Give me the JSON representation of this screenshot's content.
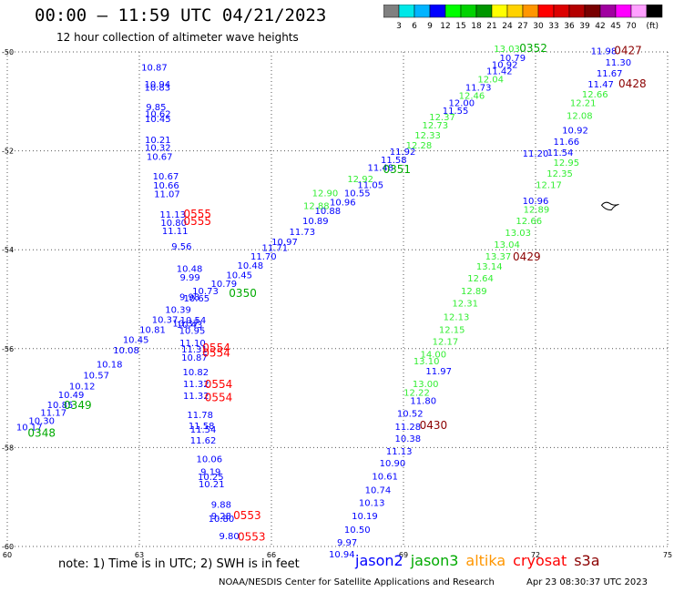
{
  "header": {
    "title": "00:00 – 11:59 UTC 04/21/2023",
    "subtitle": "12 hour collection of altimeter wave heights"
  },
  "legend": {
    "unit": "(ft)",
    "bins": [
      {
        "label": "",
        "color": "#808080"
      },
      {
        "label": "3",
        "color": "#00e8e8"
      },
      {
        "label": "6",
        "color": "#00b4ff"
      },
      {
        "label": "9",
        "color": "#0000ff"
      },
      {
        "label": "12",
        "color": "#00ff00"
      },
      {
        "label": "15",
        "color": "#00d200"
      },
      {
        "label": "18",
        "color": "#009600"
      },
      {
        "label": "21",
        "color": "#ffff00"
      },
      {
        "label": "24",
        "color": "#ffd200"
      },
      {
        "label": "27",
        "color": "#ff9600"
      },
      {
        "label": "30",
        "color": "#ff0000"
      },
      {
        "label": "33",
        "color": "#dc0000"
      },
      {
        "label": "36",
        "color": "#b40000"
      },
      {
        "label": "39",
        "color": "#780000"
      },
      {
        "label": "42",
        "color": "#a000a0"
      },
      {
        "label": "45",
        "color": "#ff00ff"
      },
      {
        "label": "70",
        "color": "#ffa0ff"
      },
      {
        "label": "",
        "color": "#000000"
      }
    ]
  },
  "map": {
    "lon_range": [
      60,
      75
    ],
    "lat_range": [
      -60,
      -50
    ],
    "lon_ticks": [
      "60",
      "63",
      "66",
      "69",
      "72",
      "75"
    ],
    "lat_ticks": [
      "-50",
      "-52",
      "-54",
      "-56",
      "-58",
      "-60"
    ],
    "satellite_colors": {
      "jason2": "#0000ff",
      "jason3": "#00aa00",
      "altika": "#ff9600",
      "cryosat": "#ff0000",
      "s3a": "#8b0000",
      "cryosat_light": "#ff0000",
      "jason3_light": "#33ee33"
    },
    "points": [
      {
        "lon": 72.0,
        "lat": -52.12,
        "v": "11.20",
        "s": "jason2"
      },
      {
        "lon": 63.34,
        "lat": -50.38,
        "v": "10.87",
        "s": "jason2"
      },
      {
        "lon": 63.41,
        "lat": -50.72,
        "v": "10.94",
        "s": "jason2"
      },
      {
        "lon": 63.41,
        "lat": -50.78,
        "v": "10.83",
        "s": "jason2"
      },
      {
        "lon": 63.38,
        "lat": -51.18,
        "v": "9.85",
        "s": "jason2"
      },
      {
        "lon": 63.42,
        "lat": -51.32,
        "v": "10.62",
        "s": "jason2"
      },
      {
        "lon": 63.42,
        "lat": -51.42,
        "v": "10.45",
        "s": "jason2"
      },
      {
        "lon": 63.42,
        "lat": -51.84,
        "v": "10.21",
        "s": "jason2"
      },
      {
        "lon": 63.42,
        "lat": -52.0,
        "v": "10.32",
        "s": "jason2"
      },
      {
        "lon": 63.46,
        "lat": -52.18,
        "v": "10.67",
        "s": "jason2"
      },
      {
        "lon": 63.6,
        "lat": -52.58,
        "v": "10.67",
        "s": "jason2"
      },
      {
        "lon": 63.61,
        "lat": -52.76,
        "v": "10.66",
        "s": "jason2"
      },
      {
        "lon": 63.63,
        "lat": -52.94,
        "v": "11.07",
        "s": "jason2"
      },
      {
        "lon": 63.76,
        "lat": -53.35,
        "v": "11.13",
        "s": "jason2"
      },
      {
        "lon": 63.78,
        "lat": -53.52,
        "v": "10.80",
        "s": "jason2"
      },
      {
        "lon": 63.81,
        "lat": -53.68,
        "v": "11.11",
        "s": "jason2"
      },
      {
        "lon": 63.96,
        "lat": -54.0,
        "v": "9.56",
        "s": "jason2"
      },
      {
        "lon": 64.14,
        "lat": -54.45,
        "v": "10.48",
        "s": "jason2"
      },
      {
        "lon": 64.15,
        "lat": -54.62,
        "v": "9.99",
        "s": "jason2"
      },
      {
        "lon": 64.14,
        "lat": -55.02,
        "v": "9.98",
        "s": "jason2"
      },
      {
        "lon": 64.05,
        "lat": -55.55,
        "v": "10.37",
        "s": "jason2"
      },
      {
        "lon": 64.22,
        "lat": -55.49,
        "v": "10.54",
        "s": "jason2"
      },
      {
        "lon": 64.14,
        "lat": -55.58,
        "v": "10.43",
        "s": "jason2"
      },
      {
        "lon": 64.2,
        "lat": -55.7,
        "v": "10.95",
        "s": "jason2"
      },
      {
        "lon": 64.21,
        "lat": -55.95,
        "v": "11.10",
        "s": "jason2"
      },
      {
        "lon": 64.25,
        "lat": -56.08,
        "v": "11.31",
        "s": "jason2"
      },
      {
        "lon": 64.25,
        "lat": -56.24,
        "v": "10.87",
        "s": "jason2"
      },
      {
        "lon": 64.28,
        "lat": -56.54,
        "v": "10.82",
        "s": "jason2"
      },
      {
        "lon": 64.29,
        "lat": -56.78,
        "v": "11.32",
        "s": "jason2"
      },
      {
        "lon": 64.29,
        "lat": -57.02,
        "v": "11.32",
        "s": "jason2"
      },
      {
        "lon": 64.38,
        "lat": -57.4,
        "v": "11.78",
        "s": "jason2"
      },
      {
        "lon": 64.41,
        "lat": -57.62,
        "v": "11.58",
        "s": "jason2"
      },
      {
        "lon": 64.45,
        "lat": -57.7,
        "v": "11.54",
        "s": "jason2"
      },
      {
        "lon": 64.45,
        "lat": -57.92,
        "v": "11.62",
        "s": "jason2"
      },
      {
        "lon": 64.59,
        "lat": -58.3,
        "v": "10.06",
        "s": "jason2"
      },
      {
        "lon": 64.62,
        "lat": -58.55,
        "v": "9.19",
        "s": "jason2"
      },
      {
        "lon": 64.62,
        "lat": -58.66,
        "v": "10.25",
        "s": "jason2"
      },
      {
        "lon": 64.64,
        "lat": -58.8,
        "v": "10.21",
        "s": "jason2"
      },
      {
        "lon": 64.86,
        "lat": -59.22,
        "v": "9.88",
        "s": "jason2"
      },
      {
        "lon": 64.86,
        "lat": -59.45,
        "v": "9.28",
        "s": "jason2"
      },
      {
        "lon": 64.86,
        "lat": -59.5,
        "v": "10.80",
        "s": "jason2"
      },
      {
        "lon": 65.04,
        "lat": -59.85,
        "v": "9.80",
        "s": "jason2"
      },
      {
        "lon": 60.5,
        "lat": -57.65,
        "v": "10.17",
        "s": "jason2"
      },
      {
        "lon": 60.78,
        "lat": -57.52,
        "v": "10.30",
        "s": "jason2"
      },
      {
        "lon": 61.05,
        "lat": -57.36,
        "v": "11.17",
        "s": "jason2"
      },
      {
        "lon": 61.2,
        "lat": -57.2,
        "v": "10.85",
        "s": "jason2"
      },
      {
        "lon": 61.45,
        "lat": -57.0,
        "v": "10.49",
        "s": "jason2"
      },
      {
        "lon": 61.7,
        "lat": -56.82,
        "v": "10.12",
        "s": "jason2"
      },
      {
        "lon": 62.02,
        "lat": -56.6,
        "v": "10.57",
        "s": "jason2"
      },
      {
        "lon": 62.32,
        "lat": -56.38,
        "v": "10.18",
        "s": "jason2"
      },
      {
        "lon": 62.7,
        "lat": -56.1,
        "v": "10.08",
        "s": "jason2"
      },
      {
        "lon": 62.92,
        "lat": -55.88,
        "v": "10.45",
        "s": "jason2"
      },
      {
        "lon": 63.3,
        "lat": -55.68,
        "v": "10.81",
        "s": "jason2"
      },
      {
        "lon": 63.58,
        "lat": -55.48,
        "v": "10.37",
        "s": "jason2"
      },
      {
        "lon": 63.88,
        "lat": -55.28,
        "v": "10.39",
        "s": "jason2"
      },
      {
        "lon": 64.3,
        "lat": -55.05,
        "v": "10.65",
        "s": "jason2"
      },
      {
        "lon": 64.5,
        "lat": -54.9,
        "v": "10.73",
        "s": "jason2"
      },
      {
        "lon": 64.92,
        "lat": -54.75,
        "v": "10.79",
        "s": "jason2"
      },
      {
        "lon": 65.27,
        "lat": -54.58,
        "v": "10.45",
        "s": "jason2"
      },
      {
        "lon": 65.52,
        "lat": -54.38,
        "v": "10.48",
        "s": "jason2"
      },
      {
        "lon": 65.82,
        "lat": -54.2,
        "v": "11.70",
        "s": "jason2"
      },
      {
        "lon": 66.08,
        "lat": -54.02,
        "v": "11.71",
        "s": "jason2"
      },
      {
        "lon": 66.3,
        "lat": -53.9,
        "v": "10.97",
        "s": "jason2"
      },
      {
        "lon": 66.7,
        "lat": -53.7,
        "v": "11.73",
        "s": "jason2"
      },
      {
        "lon": 67.0,
        "lat": -53.48,
        "v": "10.89",
        "s": "jason2"
      },
      {
        "lon": 67.28,
        "lat": -53.28,
        "v": "10.88",
        "s": "jason2"
      },
      {
        "lon": 67.62,
        "lat": -53.1,
        "v": "10.96",
        "s": "jason2"
      },
      {
        "lon": 67.95,
        "lat": -52.92,
        "v": "10.55",
        "s": "jason2"
      },
      {
        "lon": 68.25,
        "lat": -52.75,
        "v": "11.05",
        "s": "jason2"
      },
      {
        "lon": 68.48,
        "lat": -52.4,
        "v": "11.48",
        "s": "jason2"
      },
      {
        "lon": 68.78,
        "lat": -52.25,
        "v": "11.58",
        "s": "jason2"
      },
      {
        "lon": 68.98,
        "lat": -52.08,
        "v": "11.92",
        "s": "jason2"
      },
      {
        "lon": 70.18,
        "lat": -51.25,
        "v": "11.55",
        "s": "jason2"
      },
      {
        "lon": 70.32,
        "lat": -51.1,
        "v": "12.00",
        "s": "jason2"
      },
      {
        "lon": 70.7,
        "lat": -50.78,
        "v": "11.73",
        "s": "jason2"
      },
      {
        "lon": 71.18,
        "lat": -50.45,
        "v": "11.42",
        "s": "jason2"
      },
      {
        "lon": 71.3,
        "lat": -50.32,
        "v": "10.92",
        "s": "jason2"
      },
      {
        "lon": 71.48,
        "lat": -50.18,
        "v": "10.79",
        "s": "jason2"
      },
      {
        "lon": 73.55,
        "lat": -50.05,
        "v": "11.98",
        "s": "jason2"
      },
      {
        "lon": 73.88,
        "lat": -50.28,
        "v": "11.30",
        "s": "jason2"
      },
      {
        "lon": 73.68,
        "lat": -50.5,
        "v": "11.67",
        "s": "jason2"
      },
      {
        "lon": 73.48,
        "lat": -50.72,
        "v": "11.47",
        "s": "jason2"
      },
      {
        "lon": 72.9,
        "lat": -51.65,
        "v": "10.92",
        "s": "jason2"
      },
      {
        "lon": 72.7,
        "lat": -51.88,
        "v": "11.66",
        "s": "jason2"
      },
      {
        "lon": 72.56,
        "lat": -52.1,
        "v": "11.54",
        "s": "jason2"
      },
      {
        "lon": 72.0,
        "lat": -53.08,
        "v": "10.96",
        "s": "jason2"
      },
      {
        "lon": 69.8,
        "lat": -56.52,
        "v": "11.97",
        "s": "jason2"
      },
      {
        "lon": 69.45,
        "lat": -57.12,
        "v": "11.80",
        "s": "jason2"
      },
      {
        "lon": 69.15,
        "lat": -57.38,
        "v": "10.52",
        "s": "jason2"
      },
      {
        "lon": 69.1,
        "lat": -57.64,
        "v": "11.28",
        "s": "jason2"
      },
      {
        "lon": 69.1,
        "lat": -57.88,
        "v": "10.38",
        "s": "jason2"
      },
      {
        "lon": 68.9,
        "lat": -58.14,
        "v": "11.13",
        "s": "jason2"
      },
      {
        "lon": 68.75,
        "lat": -58.38,
        "v": "10.90",
        "s": "jason2"
      },
      {
        "lon": 68.58,
        "lat": -58.65,
        "v": "10.61",
        "s": "jason2"
      },
      {
        "lon": 68.42,
        "lat": -58.92,
        "v": "10.74",
        "s": "jason2"
      },
      {
        "lon": 68.28,
        "lat": -59.18,
        "v": "10.13",
        "s": "jason2"
      },
      {
        "lon": 68.12,
        "lat": -59.45,
        "v": "10.19",
        "s": "jason2"
      },
      {
        "lon": 67.95,
        "lat": -59.72,
        "v": "10.50",
        "s": "jason2"
      },
      {
        "lon": 67.72,
        "lat": -59.98,
        "v": "9.97",
        "s": "jason2"
      },
      {
        "lon": 67.6,
        "lat": -60.22,
        "v": "10.94",
        "s": "jason2"
      },
      {
        "lon": 67.02,
        "lat": -53.18,
        "v": "12.88",
        "s": "jason3_light"
      },
      {
        "lon": 67.22,
        "lat": -52.92,
        "v": "12.90",
        "s": "jason3_light"
      },
      {
        "lon": 68.02,
        "lat": -52.63,
        "v": "12.92",
        "s": "jason3_light"
      },
      {
        "lon": 69.35,
        "lat": -51.95,
        "v": "12.28",
        "s": "jason3_light"
      },
      {
        "lon": 69.55,
        "lat": -51.75,
        "v": "12.33",
        "s": "jason3_light"
      },
      {
        "lon": 69.72,
        "lat": -51.55,
        "v": "12.73",
        "s": "jason3_light"
      },
      {
        "lon": 69.88,
        "lat": -51.38,
        "v": "12.37",
        "s": "jason3_light"
      },
      {
        "lon": 70.55,
        "lat": -50.95,
        "v": "12.46",
        "s": "jason3_light"
      },
      {
        "lon": 70.98,
        "lat": -50.62,
        "v": "12.04",
        "s": "jason3_light"
      },
      {
        "lon": 71.35,
        "lat": -50.0,
        "v": "13.03",
        "s": "jason3_light"
      },
      {
        "lon": 73.35,
        "lat": -50.92,
        "v": "12.66",
        "s": "jason3_light"
      },
      {
        "lon": 73.08,
        "lat": -51.1,
        "v": "12.21",
        "s": "jason3_light"
      },
      {
        "lon": 73.0,
        "lat": -51.35,
        "v": "12.08",
        "s": "jason3_light"
      },
      {
        "lon": 72.7,
        "lat": -52.3,
        "v": "12.95",
        "s": "jason3_light"
      },
      {
        "lon": 72.55,
        "lat": -52.52,
        "v": "12.35",
        "s": "jason3_light"
      },
      {
        "lon": 72.3,
        "lat": -52.75,
        "v": "12.17",
        "s": "jason3_light"
      },
      {
        "lon": 72.02,
        "lat": -53.25,
        "v": "12.89",
        "s": "jason3_light"
      },
      {
        "lon": 71.85,
        "lat": -53.48,
        "v": "12.66",
        "s": "jason3_light"
      },
      {
        "lon": 71.6,
        "lat": -53.72,
        "v": "13.03",
        "s": "jason3_light"
      },
      {
        "lon": 71.35,
        "lat": -53.96,
        "v": "13.04",
        "s": "jason3_light"
      },
      {
        "lon": 71.15,
        "lat": -54.2,
        "v": "13.37",
        "s": "jason3_light"
      },
      {
        "lon": 70.95,
        "lat": -54.4,
        "v": "13.14",
        "s": "jason3_light"
      },
      {
        "lon": 70.75,
        "lat": -54.64,
        "v": "12.64",
        "s": "jason3_light"
      },
      {
        "lon": 70.6,
        "lat": -54.9,
        "v": "12.89",
        "s": "jason3_light"
      },
      {
        "lon": 70.4,
        "lat": -55.15,
        "v": "12.31",
        "s": "jason3_light"
      },
      {
        "lon": 70.2,
        "lat": -55.42,
        "v": "12.13",
        "s": "jason3_light"
      },
      {
        "lon": 70.1,
        "lat": -55.68,
        "v": "12.15",
        "s": "jason3_light"
      },
      {
        "lon": 69.95,
        "lat": -55.92,
        "v": "12.17",
        "s": "jason3_light"
      },
      {
        "lon": 69.68,
        "lat": -56.18,
        "v": "14.00",
        "s": "jason3_light"
      },
      {
        "lon": 69.52,
        "lat": -56.32,
        "v": "13.10",
        "s": "jason3_light"
      },
      {
        "lon": 69.5,
        "lat": -56.78,
        "v": "13.00",
        "s": "jason3_light"
      },
      {
        "lon": 69.3,
        "lat": -56.95,
        "v": "12.22",
        "s": "jason3_light"
      },
      {
        "lon": 71.05,
        "lat": -50.05,
        "v": "",
        "s": "jason3_light"
      }
    ],
    "pass_labels": [
      {
        "lon": 71.95,
        "lat": -50.0,
        "t": "0352",
        "s": "jason3"
      },
      {
        "lon": 68.85,
        "lat": -52.45,
        "t": "0351",
        "s": "jason3"
      },
      {
        "lon": 65.35,
        "lat": -54.95,
        "t": "0350",
        "s": "jason3"
      },
      {
        "lon": 61.6,
        "lat": -57.22,
        "t": "0349",
        "s": "jason3"
      },
      {
        "lon": 60.78,
        "lat": -57.78,
        "t": "0348",
        "s": "jason3"
      },
      {
        "lon": 74.1,
        "lat": -50.05,
        "t": "0427",
        "s": "s3a"
      },
      {
        "lon": 74.2,
        "lat": -50.72,
        "t": "0428",
        "s": "s3a"
      },
      {
        "lon": 71.8,
        "lat": -54.22,
        "t": "0429",
        "s": "s3a"
      },
      {
        "lon": 69.68,
        "lat": -57.62,
        "t": "0430",
        "s": "s3a"
      },
      {
        "lon": 64.32,
        "lat": -53.35,
        "t": "0555",
        "s": "cryosat"
      },
      {
        "lon": 64.32,
        "lat": -53.5,
        "t": "0555",
        "s": "cryosat"
      },
      {
        "lon": 64.75,
        "lat": -56.06,
        "t": "0554",
        "s": "cryosat"
      },
      {
        "lon": 64.75,
        "lat": -56.16,
        "t": "0554",
        "s": "cryosat"
      },
      {
        "lon": 64.8,
        "lat": -56.8,
        "t": "0554",
        "s": "cryosat"
      },
      {
        "lon": 64.8,
        "lat": -57.06,
        "t": "0554",
        "s": "cryosat"
      },
      {
        "lon": 65.45,
        "lat": -59.45,
        "t": "0553",
        "s": "cryosat"
      },
      {
        "lon": 65.55,
        "lat": -59.88,
        "t": "0553",
        "s": "cryosat"
      }
    ]
  },
  "footer": {
    "note": "note: 1) Time is in UTC; 2) SWH is in feet",
    "satellites": [
      {
        "name": "jason2",
        "color": "#0000ff"
      },
      {
        "name": "jason3",
        "color": "#00aa00"
      },
      {
        "name": "altika",
        "color": "#ff9600"
      },
      {
        "name": "cryosat",
        "color": "#ff0000"
      },
      {
        "name": "s3a",
        "color": "#8b0000"
      }
    ],
    "credit": "NOAA/NESDIS Center for Satellite Applications and Research",
    "timestamp": "Apr 23 08:30:37 UTC 2023"
  }
}
